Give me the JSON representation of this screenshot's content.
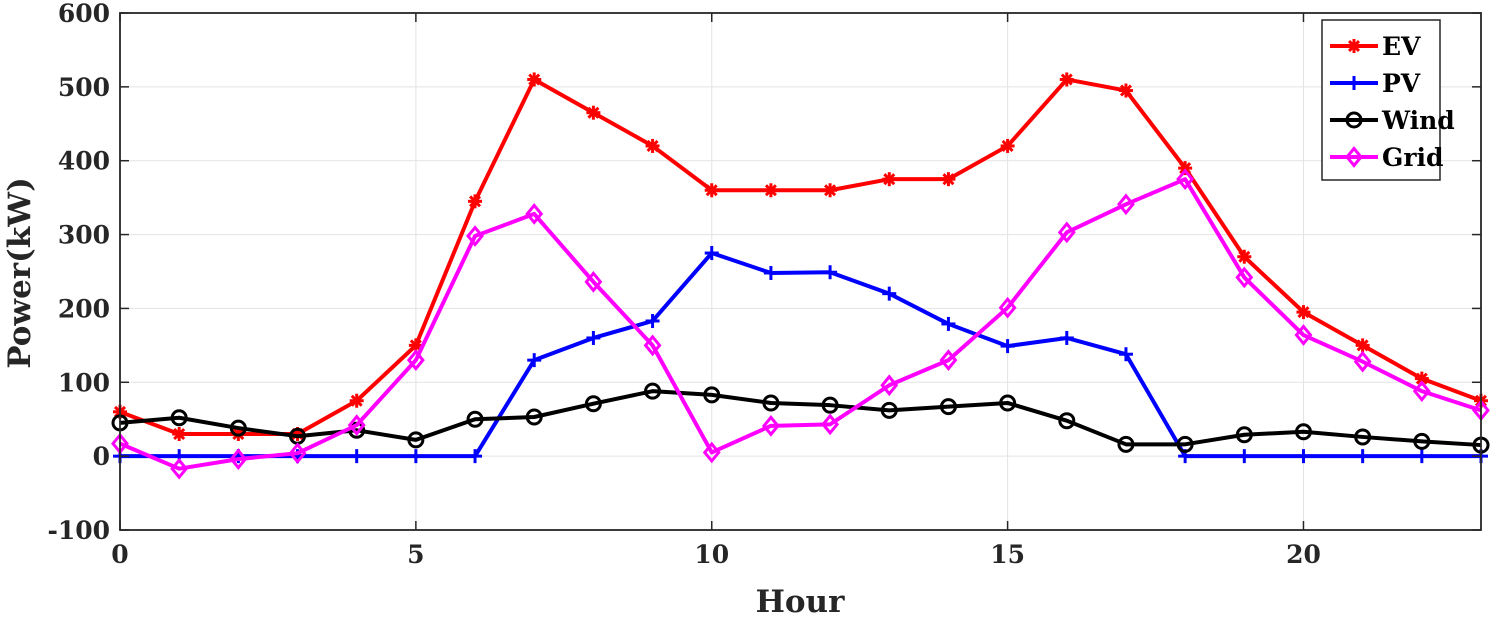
{
  "chart_data": {
    "type": "line",
    "title": "",
    "xlabel": "Hour",
    "ylabel": "Power(kW)",
    "xlim": [
      0,
      23
    ],
    "ylim": [
      -100,
      600
    ],
    "xticks": [
      0,
      5,
      10,
      15,
      20
    ],
    "yticks": [
      -100,
      0,
      100,
      200,
      300,
      400,
      500,
      600
    ],
    "grid": true,
    "legend_position": "top-right",
    "x": [
      0,
      1,
      2,
      3,
      4,
      5,
      6,
      7,
      8,
      9,
      10,
      11,
      12,
      13,
      14,
      15,
      16,
      17,
      18,
      19,
      20,
      21,
      22,
      23
    ],
    "series": [
      {
        "name": "EV",
        "color": "#ff0000",
        "marker": "asterisk",
        "values": [
          60,
          30,
          30,
          30,
          75,
          150,
          345,
          510,
          465,
          420,
          360,
          360,
          360,
          375,
          375,
          420,
          510,
          495,
          390,
          270,
          195,
          150,
          105,
          75
        ]
      },
      {
        "name": "PV",
        "color": "#0000ff",
        "marker": "plus",
        "values": [
          0,
          0,
          0,
          0,
          0,
          0,
          0,
          130,
          160,
          183,
          275,
          248,
          249,
          220,
          179,
          149,
          160,
          138,
          0,
          0,
          0,
          0,
          0,
          0
        ]
      },
      {
        "name": "Wind",
        "color": "#000000",
        "marker": "circle",
        "values": [
          45,
          52,
          38,
          27,
          35,
          22,
          50,
          53,
          71,
          88,
          83,
          72,
          69,
          62,
          67,
          72,
          48,
          16,
          16,
          29,
          33,
          26,
          20,
          15
        ]
      },
      {
        "name": "Grid",
        "color": "#ff00ff",
        "marker": "diamond",
        "values": [
          17,
          -17,
          -4,
          4,
          42,
          130,
          298,
          328,
          236,
          150,
          5,
          41,
          43,
          96,
          130,
          201,
          303,
          341,
          375,
          242,
          164,
          128,
          88,
          62
        ]
      }
    ]
  }
}
